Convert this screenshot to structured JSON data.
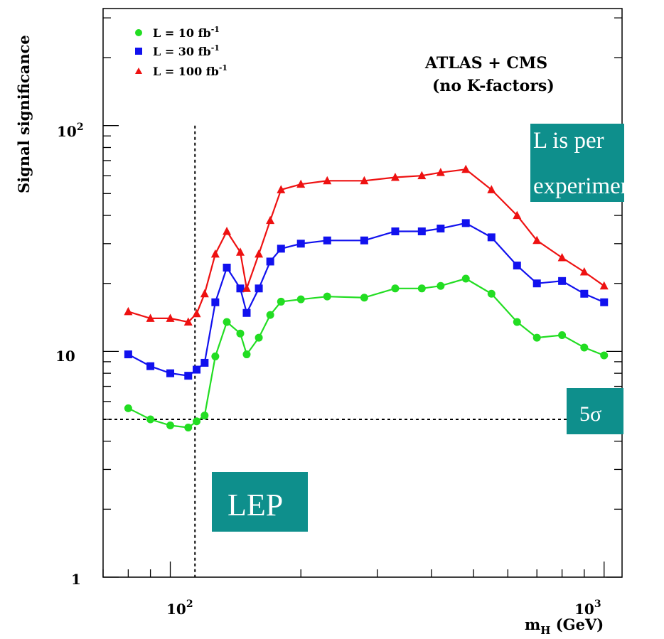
{
  "chart_data": {
    "type": "line",
    "xscale": "log",
    "yscale": "log",
    "xlim": [
      70,
      1100
    ],
    "ylim": [
      1,
      330
    ],
    "xlabel": "m",
    "xlabel_sub": "H",
    "xlabel_unit": "(GeV)",
    "ylabel": "Signal significance",
    "x_ticks": [
      {
        "value": 100,
        "base": "10",
        "exp": "2"
      },
      {
        "value": 1000,
        "base": "10",
        "exp": "3"
      }
    ],
    "y_ticks": [
      {
        "value": 1,
        "label": "1"
      },
      {
        "value": 10,
        "label": "10"
      },
      {
        "value": 100,
        "base": "10",
        "exp": "2"
      }
    ],
    "annotations": {
      "title_line1": "ATLAS + CMS",
      "title_line2": "(no K-factors)",
      "note_line1": "L  is  per",
      "note_line2": "experiment",
      "sigma_label": "5σ",
      "lep_label": "LEP"
    },
    "reference_lines": {
      "lep_mass": 114,
      "five_sigma": 5
    },
    "colors": {
      "note_box": "#0e8f8c",
      "series_10": "#22dd22",
      "series_30": "#1111ee",
      "series_100": "#ee1111"
    },
    "series": [
      {
        "name": "L = 10 fb",
        "name_exp": "-1",
        "marker": "circle",
        "color": "#22dd22",
        "x": [
          80,
          90,
          100,
          110,
          115,
          120,
          127,
          135,
          145,
          150,
          160,
          170,
          180,
          200,
          230,
          280,
          330,
          380,
          420,
          480,
          550,
          630,
          700,
          800,
          900,
          1000
        ],
        "y": [
          5.6,
          5.0,
          4.7,
          4.6,
          4.9,
          5.2,
          9.5,
          13.5,
          12.0,
          9.7,
          11.5,
          14.5,
          16.6,
          17.0,
          17.5,
          17.3,
          19.0,
          19.0,
          19.5,
          21.0,
          18.0,
          13.5,
          11.5,
          11.8,
          10.4,
          9.6
        ]
      },
      {
        "name": "L = 30 fb",
        "name_exp": "-1",
        "marker": "square",
        "color": "#1111ee",
        "x": [
          80,
          90,
          100,
          110,
          115,
          120,
          127,
          135,
          145,
          150,
          160,
          170,
          180,
          200,
          230,
          280,
          330,
          380,
          420,
          480,
          550,
          630,
          700,
          800,
          900,
          1000
        ],
        "y": [
          9.7,
          8.6,
          8.0,
          7.8,
          8.3,
          8.9,
          16.5,
          23.5,
          19.0,
          14.8,
          19.0,
          25.0,
          28.5,
          30.0,
          31.0,
          31.0,
          34.0,
          34.0,
          35.0,
          37.0,
          32.0,
          24.0,
          20.0,
          20.5,
          18.0,
          16.5
        ]
      },
      {
        "name": "L = 100 fb",
        "name_exp": "-1",
        "marker": "triangle",
        "color": "#ee1111",
        "x": [
          80,
          90,
          100,
          110,
          115,
          120,
          127,
          135,
          145,
          150,
          160,
          170,
          180,
          200,
          230,
          280,
          330,
          380,
          420,
          480,
          550,
          630,
          700,
          800,
          900,
          1000
        ],
        "y": [
          15.0,
          14.0,
          14.0,
          13.5,
          14.7,
          18.0,
          27.0,
          34.0,
          27.5,
          19.0,
          27.0,
          38.0,
          52.0,
          55.0,
          57.0,
          57.0,
          59.0,
          60.0,
          62.0,
          64.0,
          52.0,
          40.0,
          31.0,
          26.0,
          22.5,
          19.5
        ]
      }
    ]
  }
}
